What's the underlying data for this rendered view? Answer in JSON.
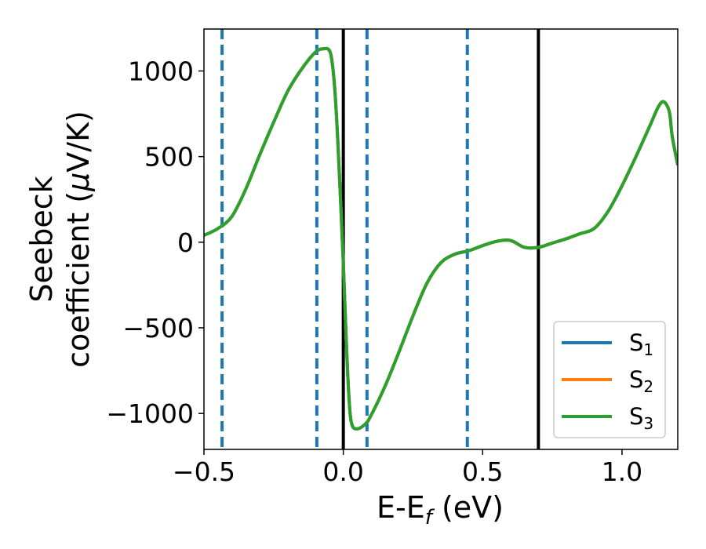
{
  "chart_data": {
    "type": "line",
    "xlabel_main": "E-E",
    "xlabel_sub": "f",
    "xlabel_unit": " (eV)",
    "ylabel_line1": "Seebeck",
    "ylabel_line2": "coefficient  (",
    "ylabel_mu": "μ",
    "ylabel_unit": "V/K)",
    "xlim": [
      -0.5,
      1.2
    ],
    "ylim": [
      -1210,
      1245
    ],
    "xticks": [
      -0.5,
      0.0,
      0.5,
      1.0
    ],
    "xtick_labels": [
      "−0.5",
      "0.0",
      "0.5",
      "1.0"
    ],
    "yticks": [
      -1000,
      -500,
      0,
      500,
      1000
    ],
    "ytick_labels": [
      "−1000",
      "−500",
      "0",
      "500",
      "1000"
    ],
    "grid": false,
    "legend_position": "lower-right",
    "series": [
      {
        "name": "S",
        "sub": "1",
        "color": "#1f77b4",
        "x": [
          -0.5,
          -0.45,
          -0.4,
          -0.35,
          -0.3,
          -0.25,
          -0.2,
          -0.15,
          -0.1,
          -0.07,
          -0.05,
          -0.04,
          -0.03,
          -0.02,
          -0.01,
          0.0,
          0.01,
          0.02,
          0.03,
          0.05,
          0.08,
          0.1,
          0.15,
          0.2,
          0.25,
          0.3,
          0.35,
          0.4,
          0.45,
          0.5,
          0.55,
          0.6,
          0.65,
          0.7,
          0.75,
          0.8,
          0.85,
          0.9,
          0.95,
          1.0,
          1.05,
          1.1,
          1.13,
          1.15,
          1.17,
          1.18,
          1.2
        ],
        "y": [
          40,
          80,
          150,
          310,
          510,
          700,
          880,
          1010,
          1110,
          1130,
          1120,
          1050,
          880,
          600,
          250,
          -120,
          -550,
          -900,
          -1060,
          -1090,
          -1060,
          -1010,
          -840,
          -640,
          -430,
          -240,
          -120,
          -70,
          -50,
          -20,
          5,
          10,
          -30,
          -30,
          -5,
          20,
          50,
          80,
          180,
          330,
          500,
          680,
          790,
          820,
          760,
          620,
          450
        ]
      },
      {
        "name": "S",
        "sub": "2",
        "color": "#ff7f0e",
        "x": [
          -0.5,
          -0.45,
          -0.4,
          -0.35,
          -0.3,
          -0.25,
          -0.2,
          -0.15,
          -0.1,
          -0.07,
          -0.05,
          -0.04,
          -0.03,
          -0.02,
          -0.01,
          0.0,
          0.01,
          0.02,
          0.03,
          0.05,
          0.08,
          0.1,
          0.15,
          0.2,
          0.25,
          0.3,
          0.35,
          0.4,
          0.45,
          0.5,
          0.55,
          0.6,
          0.65,
          0.7,
          0.75,
          0.8,
          0.85,
          0.9,
          0.95,
          1.0,
          1.05,
          1.1,
          1.13,
          1.15,
          1.17,
          1.18,
          1.2
        ],
        "y": [
          40,
          80,
          150,
          310,
          510,
          700,
          880,
          1010,
          1110,
          1130,
          1120,
          1050,
          880,
          600,
          250,
          -120,
          -550,
          -900,
          -1060,
          -1090,
          -1060,
          -1010,
          -840,
          -640,
          -430,
          -240,
          -120,
          -70,
          -50,
          -20,
          5,
          10,
          -30,
          -30,
          -5,
          20,
          50,
          80,
          180,
          330,
          500,
          680,
          790,
          820,
          760,
          620,
          450
        ]
      },
      {
        "name": "S",
        "sub": "3",
        "color": "#2ca02c",
        "x": [
          -0.5,
          -0.45,
          -0.4,
          -0.35,
          -0.3,
          -0.25,
          -0.2,
          -0.15,
          -0.1,
          -0.07,
          -0.05,
          -0.04,
          -0.03,
          -0.02,
          -0.01,
          0.0,
          0.01,
          0.02,
          0.03,
          0.05,
          0.08,
          0.1,
          0.15,
          0.2,
          0.25,
          0.3,
          0.35,
          0.4,
          0.45,
          0.5,
          0.55,
          0.6,
          0.65,
          0.7,
          0.75,
          0.8,
          0.85,
          0.9,
          0.95,
          1.0,
          1.05,
          1.1,
          1.13,
          1.15,
          1.17,
          1.18,
          1.2
        ],
        "y": [
          40,
          80,
          150,
          310,
          510,
          700,
          880,
          1010,
          1110,
          1130,
          1120,
          1050,
          880,
          600,
          250,
          -120,
          -550,
          -900,
          -1060,
          -1090,
          -1060,
          -1010,
          -840,
          -640,
          -430,
          -240,
          -120,
          -70,
          -50,
          -20,
          5,
          10,
          -30,
          -30,
          -5,
          20,
          50,
          80,
          180,
          330,
          500,
          680,
          790,
          820,
          760,
          620,
          450
        ]
      }
    ],
    "vlines_dashed": {
      "color": "#1f77b4",
      "x": [
        -0.435,
        -0.095,
        0.085,
        0.445
      ]
    },
    "vlines_solid": {
      "color": "#000000",
      "x": [
        0.0,
        0.7
      ]
    }
  }
}
